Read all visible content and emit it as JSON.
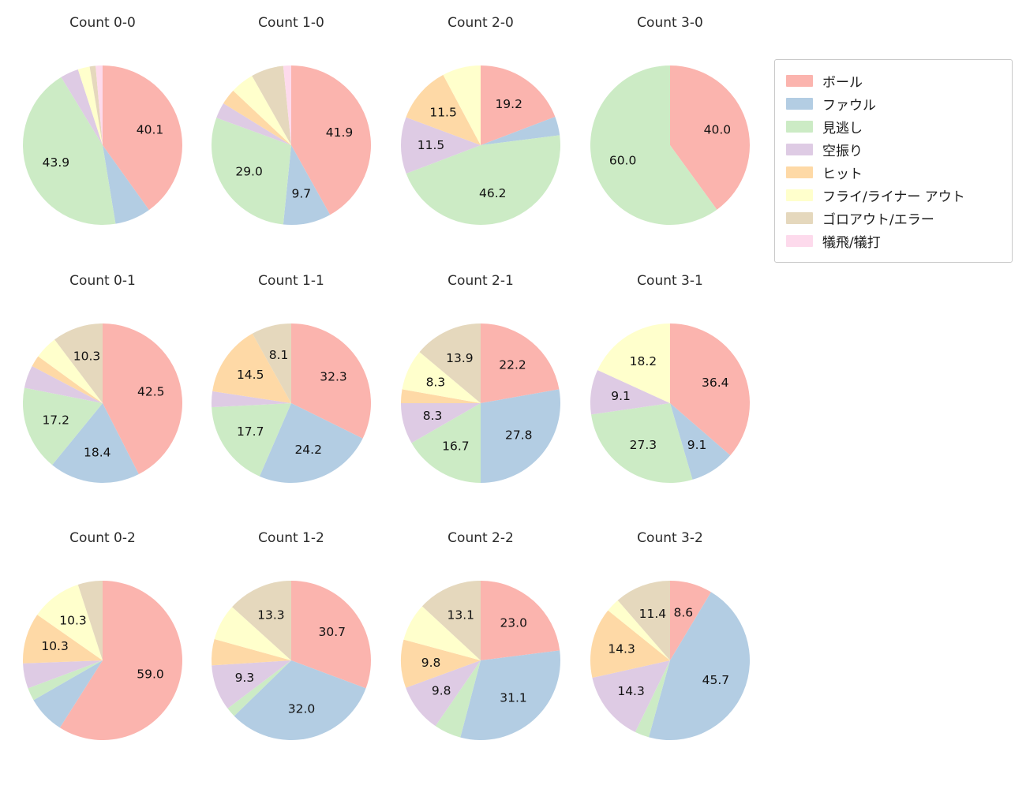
{
  "legend": {
    "items": [
      {
        "label": "ボール",
        "color": "#fbb4ae"
      },
      {
        "label": "ファウル",
        "color": "#b3cde3"
      },
      {
        "label": "見逃し",
        "color": "#ccebc5"
      },
      {
        "label": "空振り",
        "color": "#decbe4"
      },
      {
        "label": "ヒット",
        "color": "#fed9a6"
      },
      {
        "label": "フライ/ライナー アウト",
        "color": "#ffffcc"
      },
      {
        "label": "ゴロアウト/エラー",
        "color": "#e5d8bd"
      },
      {
        "label": "犠飛/犠打",
        "color": "#fddaec"
      }
    ]
  },
  "chart_data": {
    "type": "pie",
    "grid": "4 columns x 3 rows",
    "start_angle": "top",
    "direction": "clockwise",
    "categories": [
      "ボール",
      "ファウル",
      "見逃し",
      "空振り",
      "ヒット",
      "フライ/ライナー アウト",
      "ゴロアウト/エラー",
      "犠飛/犠打"
    ],
    "colors": [
      "#fbb4ae",
      "#b3cde3",
      "#ccebc5",
      "#decbe4",
      "#fed9a6",
      "#ffffcc",
      "#e5d8bd",
      "#fddaec"
    ],
    "charts": [
      {
        "title": "Count 0-0",
        "values": [
          40.1,
          7.3,
          43.9,
          3.7,
          0,
          2.4,
          1.2,
          1.4
        ],
        "labels": [
          "40.1",
          "",
          "43.9",
          "",
          "",
          "",
          "",
          ""
        ]
      },
      {
        "title": "Count 1-0",
        "values": [
          41.9,
          9.7,
          29.0,
          3.2,
          3.2,
          4.8,
          6.6,
          1.6
        ],
        "labels": [
          "41.9",
          "9.7",
          "29.0",
          "",
          "",
          "",
          "",
          ""
        ]
      },
      {
        "title": "Count 2-0",
        "values": [
          19.2,
          3.8,
          46.2,
          11.5,
          11.5,
          7.8,
          0,
          0
        ],
        "labels": [
          "19.2",
          "",
          "46.2",
          "11.5",
          "11.5",
          "",
          "",
          ""
        ]
      },
      {
        "title": "Count 3-0",
        "values": [
          40.0,
          0,
          60.0,
          0,
          0,
          0,
          0,
          0
        ],
        "labels": [
          "40.0",
          "",
          "60.0",
          "",
          "",
          "",
          "",
          ""
        ]
      },
      {
        "title": "Count 0-1",
        "values": [
          42.5,
          18.4,
          17.2,
          4.6,
          2.3,
          4.7,
          10.3,
          0
        ],
        "labels": [
          "42.5",
          "18.4",
          "17.2",
          "",
          "",
          "",
          "10.3",
          ""
        ]
      },
      {
        "title": "Count 1-1",
        "values": [
          32.3,
          24.2,
          17.7,
          3.2,
          14.5,
          0,
          8.1,
          0
        ],
        "labels": [
          "32.3",
          "24.2",
          "17.7",
          "",
          "14.5",
          "",
          "8.1",
          ""
        ]
      },
      {
        "title": "Count 2-1",
        "values": [
          22.2,
          27.8,
          16.7,
          8.3,
          2.8,
          8.3,
          13.9,
          0
        ],
        "labels": [
          "22.2",
          "27.8",
          "16.7",
          "8.3",
          "",
          "8.3",
          "13.9",
          ""
        ]
      },
      {
        "title": "Count 3-1",
        "values": [
          36.4,
          9.1,
          27.3,
          9.1,
          0,
          18.2,
          0,
          0
        ],
        "labels": [
          "36.4",
          "9.1",
          "27.3",
          "9.1",
          "",
          "18.2",
          "",
          ""
        ]
      },
      {
        "title": "Count 0-2",
        "values": [
          59.0,
          7.7,
          2.6,
          5.1,
          10.3,
          10.3,
          5.0,
          0
        ],
        "labels": [
          "59.0",
          "",
          "",
          "",
          "10.3",
          "10.3",
          "",
          ""
        ]
      },
      {
        "title": "Count 1-2",
        "values": [
          30.7,
          32.0,
          2.0,
          9.3,
          5.3,
          7.4,
          13.3,
          0
        ],
        "labels": [
          "30.7",
          "32.0",
          "",
          "9.3",
          "",
          "",
          "13.3",
          ""
        ]
      },
      {
        "title": "Count 2-2",
        "values": [
          23.0,
          31.1,
          5.5,
          9.8,
          9.8,
          7.7,
          13.1,
          0
        ],
        "labels": [
          "23.0",
          "31.1",
          "",
          "9.8",
          "9.8",
          "",
          "13.1",
          ""
        ]
      },
      {
        "title": "Count 3-2",
        "values": [
          8.6,
          45.7,
          2.9,
          14.3,
          14.3,
          2.8,
          11.4,
          0
        ],
        "labels": [
          "8.6",
          "45.7",
          "",
          "14.3",
          "14.3",
          "",
          "11.4",
          ""
        ]
      }
    ]
  }
}
